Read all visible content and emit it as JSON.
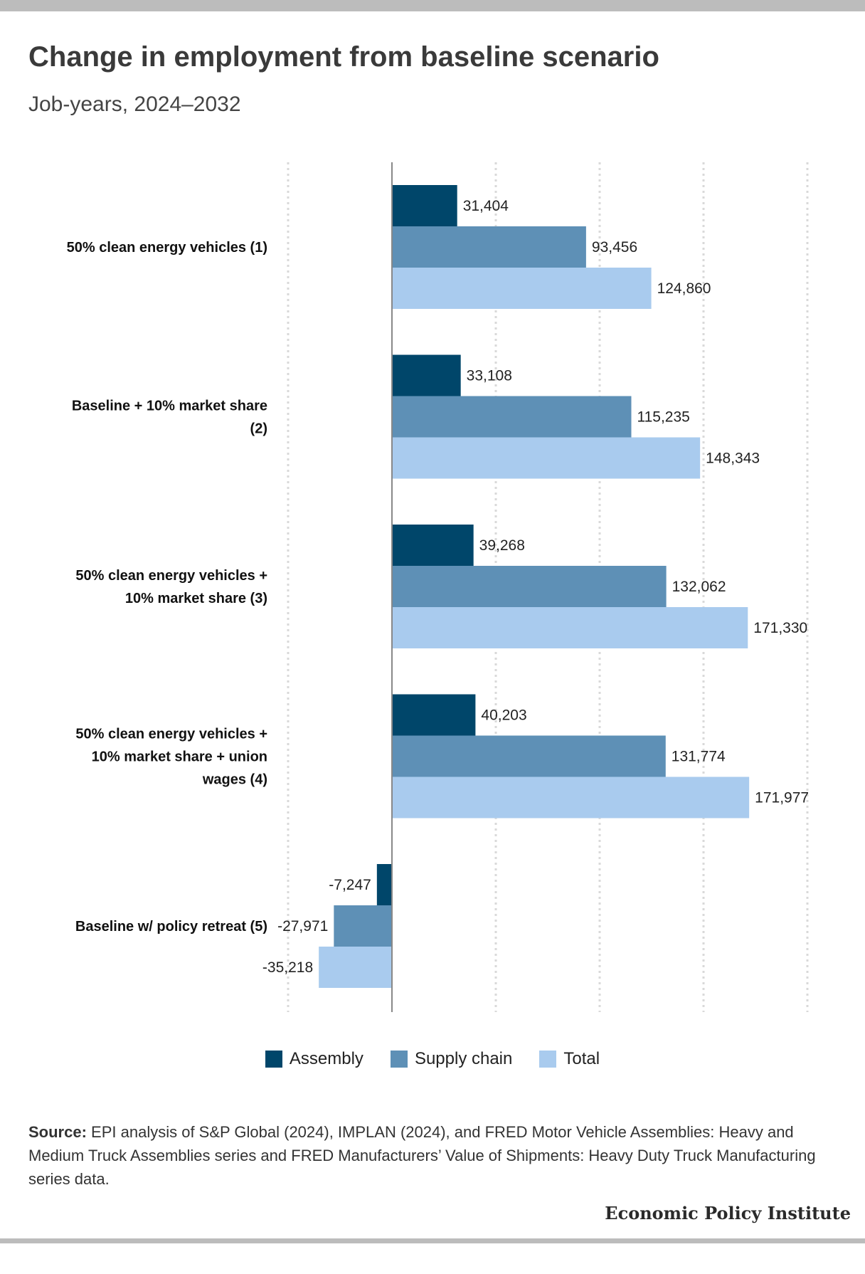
{
  "title": "Change in employment from baseline scenario",
  "subtitle": "Job-years, 2024–2032",
  "source_label": "Source:",
  "source_text": "EPI analysis of S&P Global (2024), IMPLAN (2024), and FRED Motor Vehicle Assemblies: Heavy and Medium Truck Assemblies series and FRED Manufacturers’ Value of Shipments: Heavy Duty Truck Manufacturing series data.",
  "brand": "Economic Policy Institute",
  "colors": {
    "assembly": "#00466a",
    "supply_chain": "#5e90b6",
    "total": "#a9cbee",
    "grid": "#d9d9d9",
    "axis": "#888888"
  },
  "chart_data": {
    "type": "bar",
    "orientation": "horizontal",
    "categories": [
      [
        "50% clean energy vehicles (1)"
      ],
      [
        "Baseline + 10% market share",
        "(2)"
      ],
      [
        "50% clean energy vehicles +",
        "10% market share (3)"
      ],
      [
        "50% clean energy vehicles +",
        "10% market share + union",
        "wages (4)"
      ],
      [
        "Baseline w/ policy retreat (5)"
      ]
    ],
    "series": [
      {
        "name": "Assembly",
        "values": [
          31404,
          33108,
          39268,
          40203,
          -7247
        ],
        "labels": [
          "31,404",
          "33,108",
          "39,268",
          "40,203",
          "-7,247"
        ]
      },
      {
        "name": "Supply chain",
        "values": [
          93456,
          115235,
          132062,
          131774,
          -27971
        ],
        "labels": [
          "93,456",
          "115,235",
          "132,062",
          "131,774",
          "-27,971"
        ]
      },
      {
        "name": "Total",
        "values": [
          124860,
          148343,
          171330,
          171977,
          -35218
        ],
        "labels": [
          "124,860",
          "148,343",
          "171,330",
          "171,977",
          "-35,218"
        ]
      }
    ],
    "xlim": [
      -50000,
      200000
    ],
    "grid": true,
    "legend": "bottom-center"
  }
}
